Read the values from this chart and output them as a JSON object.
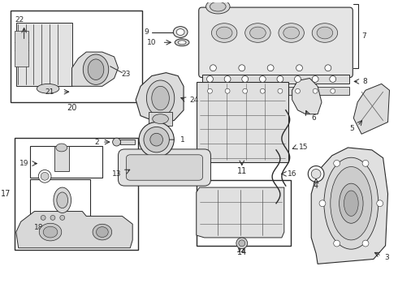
{
  "bg": "#ffffff",
  "lc": "#2a2a2a",
  "lc2": "#555555",
  "fw": 4.9,
  "fh": 3.6,
  "dpi": 100,
  "fs": 6.5,
  "fs_label": 7.0
}
